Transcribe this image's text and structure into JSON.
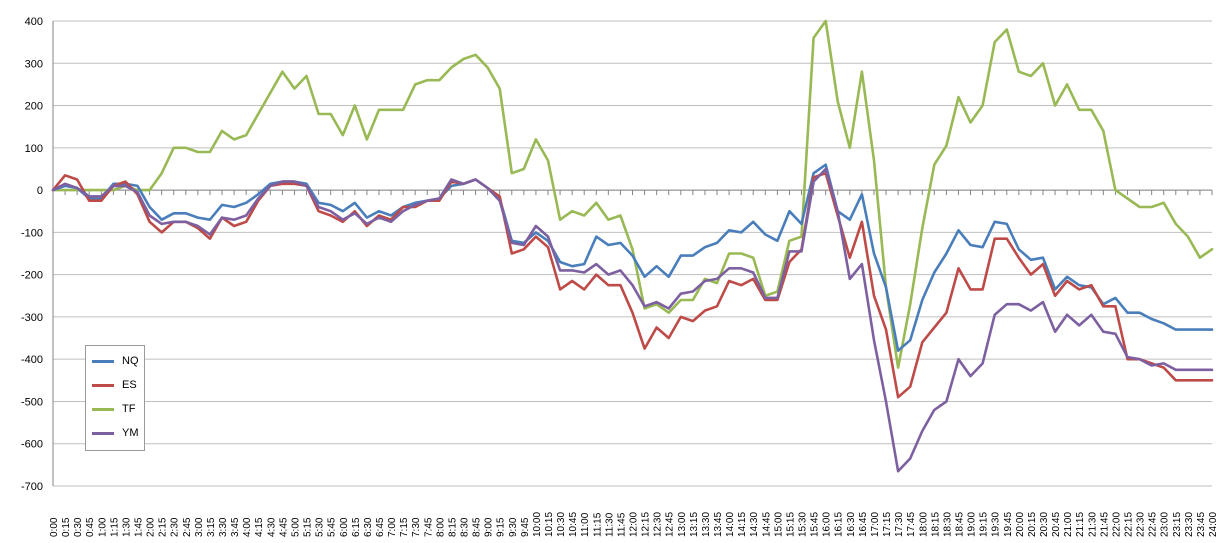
{
  "chart_data": {
    "type": "line",
    "title": "",
    "xlabel": "",
    "ylabel": "",
    "ylim": [
      -700,
      400
    ],
    "yticks": [
      "400",
      "300",
      "200",
      "100",
      "0",
      "-100",
      "-200",
      "-300",
      "-400",
      "-500",
      "-600",
      "-700"
    ],
    "grid": "horizontal",
    "legend_position": "left-lower",
    "x": [
      "0:00",
      "0:15",
      "0:30",
      "0:45",
      "1:00",
      "1:15",
      "1:30",
      "1:45",
      "2:00",
      "2:15",
      "2:30",
      "2:45",
      "3:00",
      "3:15",
      "3:30",
      "3:45",
      "4:00",
      "4:15",
      "4:30",
      "4:45",
      "5:00",
      "5:15",
      "5:30",
      "5:45",
      "6:00",
      "6:15",
      "6:30",
      "6:45",
      "7:00",
      "7:15",
      "7:30",
      "7:45",
      "8:00",
      "8:15",
      "8:30",
      "8:45",
      "9:00",
      "9:15",
      "9:30",
      "9:45",
      "10:00",
      "10:15",
      "10:30",
      "10:45",
      "11:00",
      "11:15",
      "11:30",
      "11:45",
      "12:00",
      "12:15",
      "12:30",
      "12:45",
      "13:00",
      "13:15",
      "13:30",
      "13:45",
      "14:00",
      "14:15",
      "14:30",
      "14:45",
      "15:00",
      "15:15",
      "15:30",
      "15:45",
      "16:00",
      "16:15",
      "16:30",
      "16:45",
      "17:00",
      "17:15",
      "17:30",
      "17:45",
      "18:00",
      "18:15",
      "18:30",
      "18:45",
      "19:00",
      "19:15",
      "19:30",
      "19:45",
      "20:00",
      "20:15",
      "20:30",
      "20:45",
      "21:00",
      "21:15",
      "21:30",
      "21:45",
      "22:00",
      "22:15",
      "22:30",
      "22:45",
      "23:00",
      "23:15",
      "23:30",
      "23:45",
      "24:00"
    ],
    "series": [
      {
        "name": "NQ",
        "color": "#4a7ebb",
        "values": [
          0,
          10,
          5,
          -20,
          -20,
          15,
          15,
          10,
          -40,
          -70,
          -55,
          -55,
          -65,
          -70,
          -35,
          -40,
          -30,
          -10,
          15,
          20,
          20,
          15,
          -30,
          -35,
          -50,
          -30,
          -65,
          -50,
          -60,
          -40,
          -30,
          -25,
          -20,
          10,
          15,
          25,
          5,
          -20,
          -120,
          -125,
          -100,
          -120,
          -170,
          -180,
          -175,
          -110,
          -130,
          -125,
          -155,
          -205,
          -180,
          -205,
          -155,
          -155,
          -135,
          -125,
          -95,
          -100,
          -75,
          -105,
          -120,
          -50,
          -80,
          40,
          60,
          -50,
          -70,
          -10,
          -150,
          -230,
          -380,
          -355,
          -260,
          -195,
          -150,
          -95,
          -130,
          -135,
          -75,
          -80,
          -140,
          -165,
          -160,
          -235,
          -205,
          -225,
          -230,
          -270,
          -255,
          -290,
          -290,
          -305,
          -315,
          -330,
          -330,
          -330,
          -330
        ]
      },
      {
        "name": "ES",
        "color": "#be4b48",
        "values": [
          0,
          35,
          25,
          -25,
          -25,
          10,
          20,
          -10,
          -75,
          -100,
          -75,
          -75,
          -90,
          -115,
          -65,
          -85,
          -75,
          -25,
          10,
          15,
          15,
          10,
          -50,
          -60,
          -75,
          -50,
          -85,
          -60,
          -70,
          -40,
          -40,
          -25,
          -25,
          20,
          15,
          25,
          5,
          -15,
          -150,
          -140,
          -110,
          -135,
          -235,
          -215,
          -235,
          -200,
          -225,
          -225,
          -290,
          -375,
          -325,
          -350,
          -300,
          -310,
          -285,
          -275,
          -215,
          -225,
          -210,
          -260,
          -260,
          -170,
          -140,
          30,
          40,
          -60,
          -160,
          -75,
          -250,
          -330,
          -490,
          -465,
          -360,
          -325,
          -290,
          -185,
          -235,
          -235,
          -115,
          -115,
          -160,
          -200,
          -175,
          -250,
          -215,
          -235,
          -225,
          -275,
          -275,
          -400,
          -400,
          -410,
          -420,
          -450,
          -450,
          -450,
          -450
        ]
      },
      {
        "name": "TF",
        "color": "#98b954",
        "values": [
          0,
          0,
          0,
          0,
          0,
          0,
          10,
          0,
          0,
          40,
          100,
          100,
          90,
          90,
          140,
          120,
          130,
          180,
          230,
          280,
          240,
          270,
          180,
          180,
          130,
          200,
          120,
          190,
          190,
          190,
          250,
          260,
          260,
          290,
          310,
          320,
          290,
          240,
          40,
          50,
          120,
          70,
          -70,
          -50,
          -60,
          -30,
          -70,
          -60,
          -140,
          -280,
          -270,
          -290,
          -260,
          -260,
          -210,
          -220,
          -150,
          -150,
          -160,
          -250,
          -240,
          -120,
          -110,
          360,
          400,
          210,
          100,
          280,
          70,
          -230,
          -420,
          -270,
          -90,
          60,
          105,
          220,
          160,
          200,
          350,
          380,
          280,
          270,
          300,
          200,
          250,
          190,
          190,
          140,
          0,
          -20,
          -40,
          -40,
          -30,
          -80,
          -110,
          -160,
          -140
        ]
      },
      {
        "name": "YM",
        "color": "#7d60a0",
        "values": [
          0,
          15,
          5,
          -15,
          -15,
          10,
          10,
          -5,
          -60,
          -80,
          -75,
          -75,
          -85,
          -105,
          -65,
          -70,
          -60,
          -20,
          10,
          20,
          20,
          10,
          -40,
          -50,
          -70,
          -55,
          -80,
          -65,
          -75,
          -50,
          -35,
          -25,
          -20,
          25,
          15,
          25,
          5,
          -25,
          -125,
          -130,
          -85,
          -110,
          -190,
          -190,
          -195,
          -175,
          -200,
          -190,
          -225,
          -275,
          -265,
          -280,
          -245,
          -240,
          -215,
          -210,
          -185,
          -185,
          -195,
          -255,
          -255,
          -145,
          -145,
          20,
          50,
          -50,
          -210,
          -175,
          -355,
          -500,
          -665,
          -635,
          -570,
          -520,
          -500,
          -400,
          -440,
          -410,
          -295,
          -270,
          -270,
          -285,
          -265,
          -335,
          -295,
          -320,
          -295,
          -335,
          -340,
          -395,
          -400,
          -415,
          -410,
          -425,
          -425,
          -425,
          -425
        ]
      }
    ]
  }
}
